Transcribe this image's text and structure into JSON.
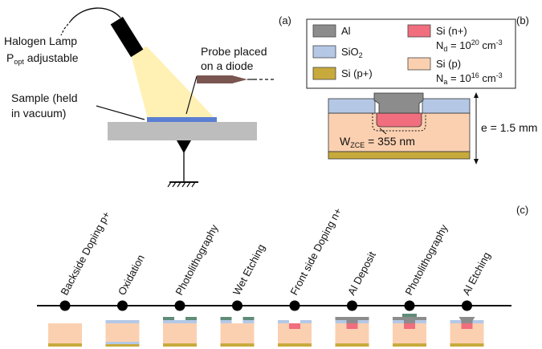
{
  "panel_labels": {
    "a": "(a)",
    "b": "(b)",
    "c": "(c)"
  },
  "setup": {
    "lamp_line1": "Halogen Lamp",
    "lamp_line2_main": "P",
    "lamp_line2_sub": "opt",
    "lamp_line2_rest": " adjustable",
    "probe_line1": "Probe placed",
    "probe_line2": "on a diode",
    "sample_line1": "Sample (held",
    "sample_line2": "in vacuum)"
  },
  "legend": {
    "al": "Al",
    "sio2_main": "SiO",
    "sio2_sub": "2",
    "sip_plus": "Si (p+)",
    "sin_plus": "Si (n+)",
    "nd_main": "N",
    "nd_sub": "d",
    "nd_eq": " = 10",
    "nd_exp": "20",
    "nd_unit": " cm",
    "nd_unit_exp": "-3",
    "sip": "Si (p)",
    "na_main": "N",
    "na_sub": "a",
    "na_eq": " = 10",
    "na_exp": "16",
    "na_unit": " cm",
    "na_unit_exp": "-3"
  },
  "cross_section": {
    "wzce_main": "W",
    "wzce_sub": "ZCE",
    "wzce_value": " = 355 nm",
    "thickness": "e = 1.5 mm"
  },
  "process_steps": [
    "Backside Doping p+",
    "Oxidation",
    "Photolithography",
    "Wet Etching",
    "Front side Doping n+",
    "Al Deposit",
    "Photolithography",
    "Al Etching"
  ],
  "colors": {
    "al": "#8c8c8c",
    "sio2": "#b4c8e6",
    "sip_plus": "#c8aa3c",
    "sin_plus": "#f06e7d",
    "sip": "#fbd0b0",
    "resist": "#5f8c78",
    "stage": "#bdbdbd",
    "beam": "#fff0b4",
    "sample_film": "#5a7ed2",
    "probe": "#7a5650"
  }
}
